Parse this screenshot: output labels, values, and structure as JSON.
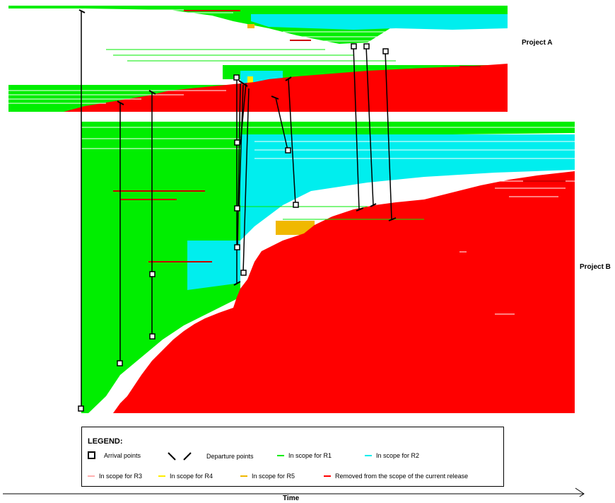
{
  "project_labels": {
    "a": "Project A",
    "b": "Project B"
  },
  "legend": {
    "title": "LEGEND:",
    "arrival": "Arrival points",
    "departure": "Departure points",
    "r1": "In scope for R1",
    "r2": "In scope for R2",
    "r3": "In scope for R3",
    "r4": "In scope for R4",
    "r5": "In scope for R5",
    "removed": "Removed from the scope of the current release"
  },
  "axis": {
    "label": "Time"
  },
  "colors": {
    "r1": "#00ee00",
    "r2": "#00eeee",
    "r3": "#ffb0b0",
    "r4": "#ffee00",
    "r5": "#f0b800",
    "removed": "#ff0000",
    "marker": "#000000"
  }
}
